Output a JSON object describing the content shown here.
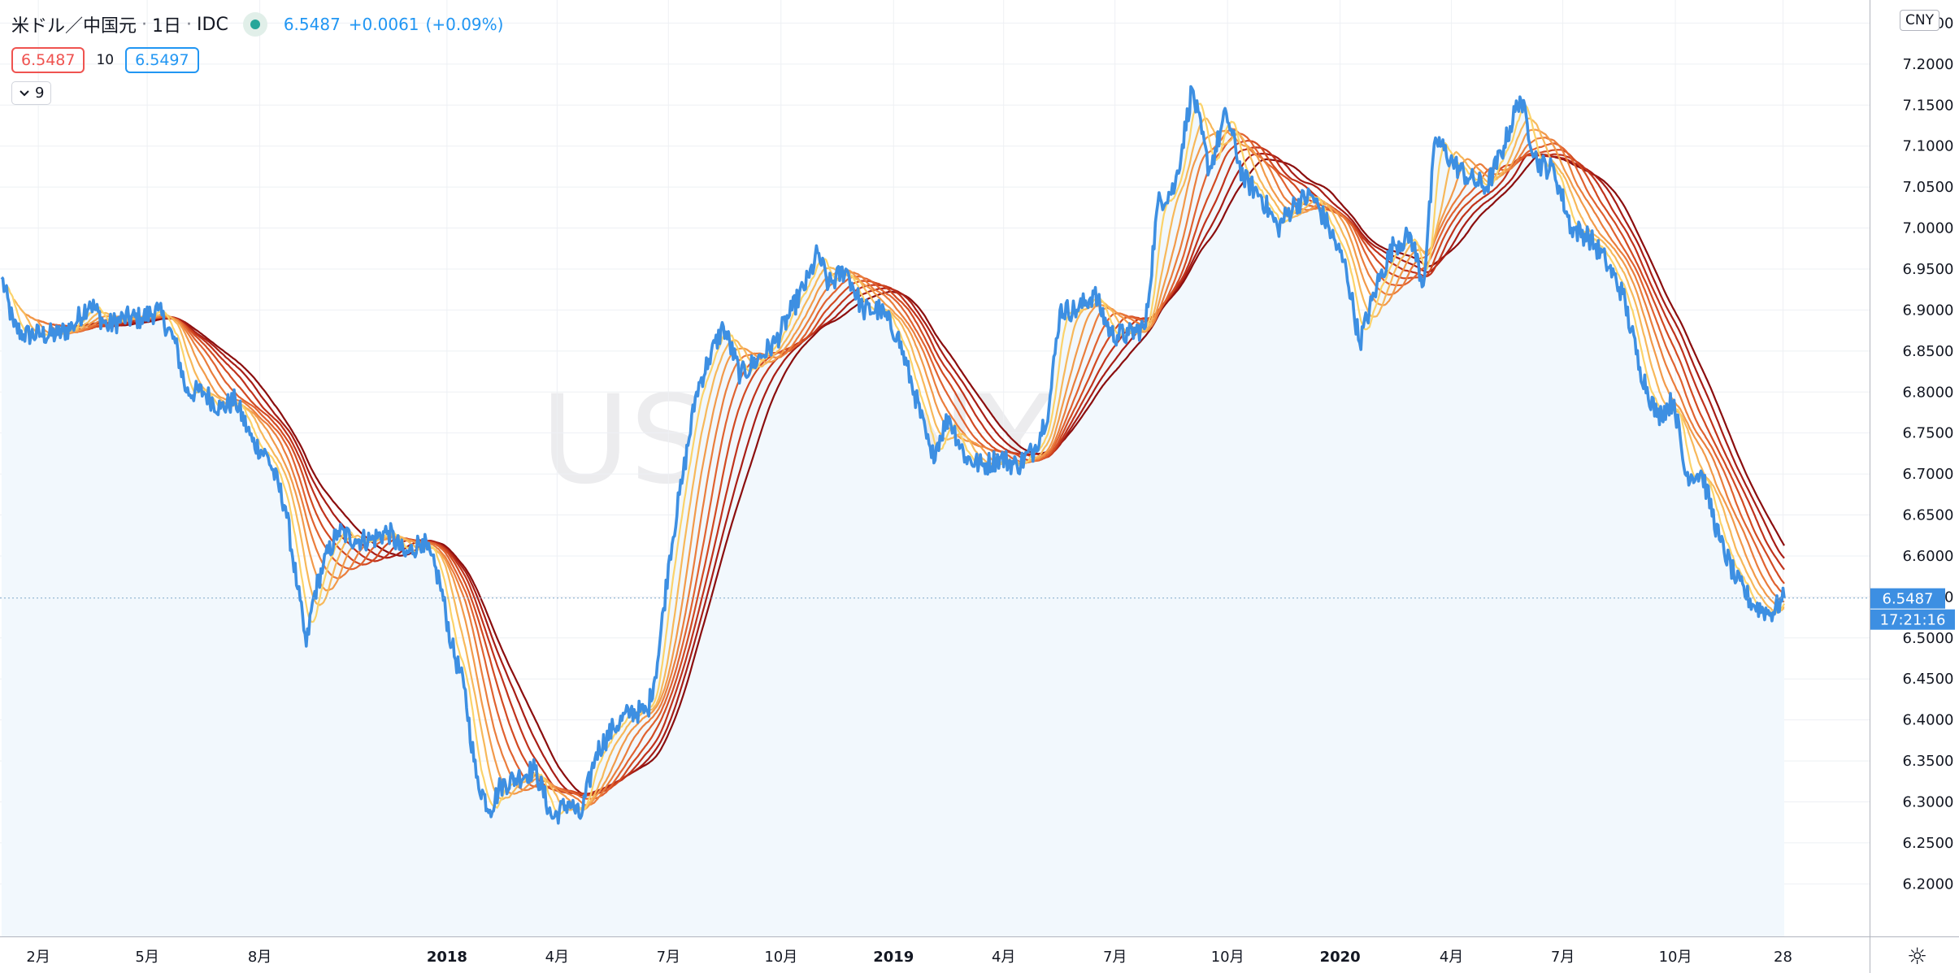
{
  "symbol": {
    "name": "米ドル／中国元",
    "interval": "1日",
    "exchange": "IDC",
    "sep": "·",
    "last": "6.5487",
    "change": "+0.0061",
    "change_pct": "(+0.09%)",
    "bid": "6.5487",
    "spread": "10",
    "ask": "6.5497",
    "collapsed_count": "9",
    "collapse_icon": "chevron-down-icon"
  },
  "watermark": {
    "main": "USDCNY, 1日",
    "sub": "米ドル／中国元"
  },
  "currency": "CNY",
  "countdown": "17:21:16",
  "colors": {
    "price_line": "#3d8fe2",
    "area_fill": "#f2f8fd",
    "ribbon": [
      "#8b0e0e",
      "#a81e16",
      "#c0331c",
      "#d24a22",
      "#e06230",
      "#ea7d3c",
      "#f29a4a",
      "#f7b85a",
      "#fbd36a"
    ],
    "grid": "#eef0f4",
    "axis_text": "#131722",
    "price_tag": "#3d8fe2"
  },
  "chart_data": {
    "type": "line",
    "y_axis_position": "right",
    "ylim": [
      6.18,
      7.265
    ],
    "y_ticks": [
      "7.2500",
      "7.2000",
      "7.1500",
      "7.1000",
      "7.0500",
      "7.0000",
      "6.9500",
      "6.9000",
      "6.8500",
      "6.8000",
      "6.7500",
      "6.7000",
      "6.6500",
      "6.6000",
      "6.5500",
      "6.5000",
      "6.4500",
      "6.4000",
      "6.3500",
      "6.3000",
      "6.2500",
      "6.2000"
    ],
    "x_ticks": [
      {
        "label": "2月",
        "date": "2017-02",
        "bold": false
      },
      {
        "label": "5月",
        "date": "2017-05",
        "bold": false
      },
      {
        "label": "8月",
        "date": "2017-08",
        "bold": false
      },
      {
        "label": "2018",
        "date": "2018-01",
        "bold": true
      },
      {
        "label": "4月",
        "date": "2018-04",
        "bold": false
      },
      {
        "label": "7月",
        "date": "2018-07",
        "bold": false
      },
      {
        "label": "10月",
        "date": "2018-10",
        "bold": false
      },
      {
        "label": "2019",
        "date": "2019-01",
        "bold": true
      },
      {
        "label": "4月",
        "date": "2019-04",
        "bold": false
      },
      {
        "label": "7月",
        "date": "2019-07",
        "bold": false
      },
      {
        "label": "10月",
        "date": "2019-10",
        "bold": false
      },
      {
        "label": "2020",
        "date": "2020-01",
        "bold": true
      },
      {
        "label": "4月",
        "date": "2020-04",
        "bold": false
      },
      {
        "label": "7月",
        "date": "2020-07",
        "bold": false
      },
      {
        "label": "10月",
        "date": "2020-10",
        "bold": false
      },
      {
        "label": "28",
        "date": "2020-12-28",
        "bold": false
      }
    ],
    "x_range": [
      "2017-01-02",
      "2020-12-29"
    ],
    "last_price": 6.5487,
    "ribbon_lengths": [
      90,
      80,
      70,
      60,
      50,
      40,
      30,
      20,
      10
    ],
    "series": [
      {
        "kind": "close",
        "points": [
          [
            "2017-01-02",
            6.94
          ],
          [
            "2017-01-12",
            6.88
          ],
          [
            "2017-01-20",
            6.87
          ],
          [
            "2017-02-03",
            6.87
          ],
          [
            "2017-02-17",
            6.87
          ],
          [
            "2017-03-01",
            6.88
          ],
          [
            "2017-03-15",
            6.91
          ],
          [
            "2017-03-29",
            6.88
          ],
          [
            "2017-04-12",
            6.89
          ],
          [
            "2017-04-26",
            6.89
          ],
          [
            "2017-05-10",
            6.9
          ],
          [
            "2017-05-24",
            6.86
          ],
          [
            "2017-06-02",
            6.8
          ],
          [
            "2017-06-16",
            6.8
          ],
          [
            "2017-06-30",
            6.78
          ],
          [
            "2017-07-12",
            6.79
          ],
          [
            "2017-07-26",
            6.74
          ],
          [
            "2017-08-08",
            6.72
          ],
          [
            "2017-08-22",
            6.66
          ],
          [
            "2017-09-01",
            6.56
          ],
          [
            "2017-09-08",
            6.49
          ],
          [
            "2017-09-14",
            6.55
          ],
          [
            "2017-09-22",
            6.59
          ],
          [
            "2017-10-04",
            6.63
          ],
          [
            "2017-10-18",
            6.62
          ],
          [
            "2017-10-31",
            6.62
          ],
          [
            "2017-11-14",
            6.63
          ],
          [
            "2017-11-28",
            6.6
          ],
          [
            "2017-12-12",
            6.62
          ],
          [
            "2017-12-26",
            6.57
          ],
          [
            "2018-01-05",
            6.49
          ],
          [
            "2018-01-15",
            6.44
          ],
          [
            "2018-01-25",
            6.33
          ],
          [
            "2018-02-05",
            6.29
          ],
          [
            "2018-02-14",
            6.32
          ],
          [
            "2018-02-28",
            6.33
          ],
          [
            "2018-03-14",
            6.34
          ],
          [
            "2018-03-28",
            6.28
          ],
          [
            "2018-04-11",
            6.3
          ],
          [
            "2018-04-20",
            6.28
          ],
          [
            "2018-05-03",
            6.36
          ],
          [
            "2018-05-17",
            6.39
          ],
          [
            "2018-05-31",
            6.41
          ],
          [
            "2018-06-14",
            6.41
          ],
          [
            "2018-06-22",
            6.47
          ],
          [
            "2018-07-02",
            6.6
          ],
          [
            "2018-07-13",
            6.7
          ],
          [
            "2018-07-24",
            6.8
          ],
          [
            "2018-08-03",
            6.84
          ],
          [
            "2018-08-15",
            6.88
          ],
          [
            "2018-08-29",
            6.82
          ],
          [
            "2018-09-12",
            6.84
          ],
          [
            "2018-09-26",
            6.86
          ],
          [
            "2018-10-10",
            6.9
          ],
          [
            "2018-10-24",
            6.94
          ],
          [
            "2018-10-31",
            6.97
          ],
          [
            "2018-11-09",
            6.93
          ],
          [
            "2018-11-23",
            6.95
          ],
          [
            "2018-12-07",
            6.9
          ],
          [
            "2018-12-21",
            6.9
          ],
          [
            "2019-01-04",
            6.87
          ],
          [
            "2019-01-18",
            6.8
          ],
          [
            "2019-02-01",
            6.72
          ],
          [
            "2019-02-15",
            6.77
          ],
          [
            "2019-03-01",
            6.72
          ],
          [
            "2019-03-15",
            6.71
          ],
          [
            "2019-03-29",
            6.72
          ],
          [
            "2019-04-12",
            6.71
          ],
          [
            "2019-04-26",
            6.73
          ],
          [
            "2019-05-08",
            6.78
          ],
          [
            "2019-05-17",
            6.9
          ],
          [
            "2019-05-31",
            6.9
          ],
          [
            "2019-06-14",
            6.92
          ],
          [
            "2019-06-28",
            6.87
          ],
          [
            "2019-07-12",
            6.87
          ],
          [
            "2019-07-26",
            6.88
          ],
          [
            "2019-08-05",
            7.03
          ],
          [
            "2019-08-19",
            7.05
          ],
          [
            "2019-09-02",
            7.17
          ],
          [
            "2019-09-16",
            7.07
          ],
          [
            "2019-09-30",
            7.14
          ],
          [
            "2019-10-14",
            7.06
          ],
          [
            "2019-10-28",
            7.04
          ],
          [
            "2019-11-11",
            7.0
          ],
          [
            "2019-11-25",
            7.03
          ],
          [
            "2019-12-09",
            7.04
          ],
          [
            "2019-12-23",
            7.0
          ],
          [
            "2020-01-06",
            6.95
          ],
          [
            "2020-01-17",
            6.86
          ],
          [
            "2020-01-31",
            6.93
          ],
          [
            "2020-02-14",
            6.98
          ],
          [
            "2020-02-28",
            6.99
          ],
          [
            "2020-03-09",
            6.93
          ],
          [
            "2020-03-19",
            7.11
          ],
          [
            "2020-04-02",
            7.08
          ],
          [
            "2020-04-16",
            7.06
          ],
          [
            "2020-04-30",
            7.05
          ],
          [
            "2020-05-14",
            7.1
          ],
          [
            "2020-05-27",
            7.16
          ],
          [
            "2020-06-10",
            7.08
          ],
          [
            "2020-06-24",
            7.07
          ],
          [
            "2020-07-08",
            7.0
          ],
          [
            "2020-07-22",
            6.99
          ],
          [
            "2020-08-05",
            6.96
          ],
          [
            "2020-08-19",
            6.92
          ],
          [
            "2020-09-02",
            6.83
          ],
          [
            "2020-09-16",
            6.77
          ],
          [
            "2020-09-30",
            6.79
          ],
          [
            "2020-10-09",
            6.7
          ],
          [
            "2020-10-23",
            6.7
          ],
          [
            "2020-11-06",
            6.62
          ],
          [
            "2020-11-20",
            6.57
          ],
          [
            "2020-12-04",
            6.54
          ],
          [
            "2020-12-18",
            6.53
          ],
          [
            "2020-12-29",
            6.5487
          ]
        ]
      }
    ]
  }
}
